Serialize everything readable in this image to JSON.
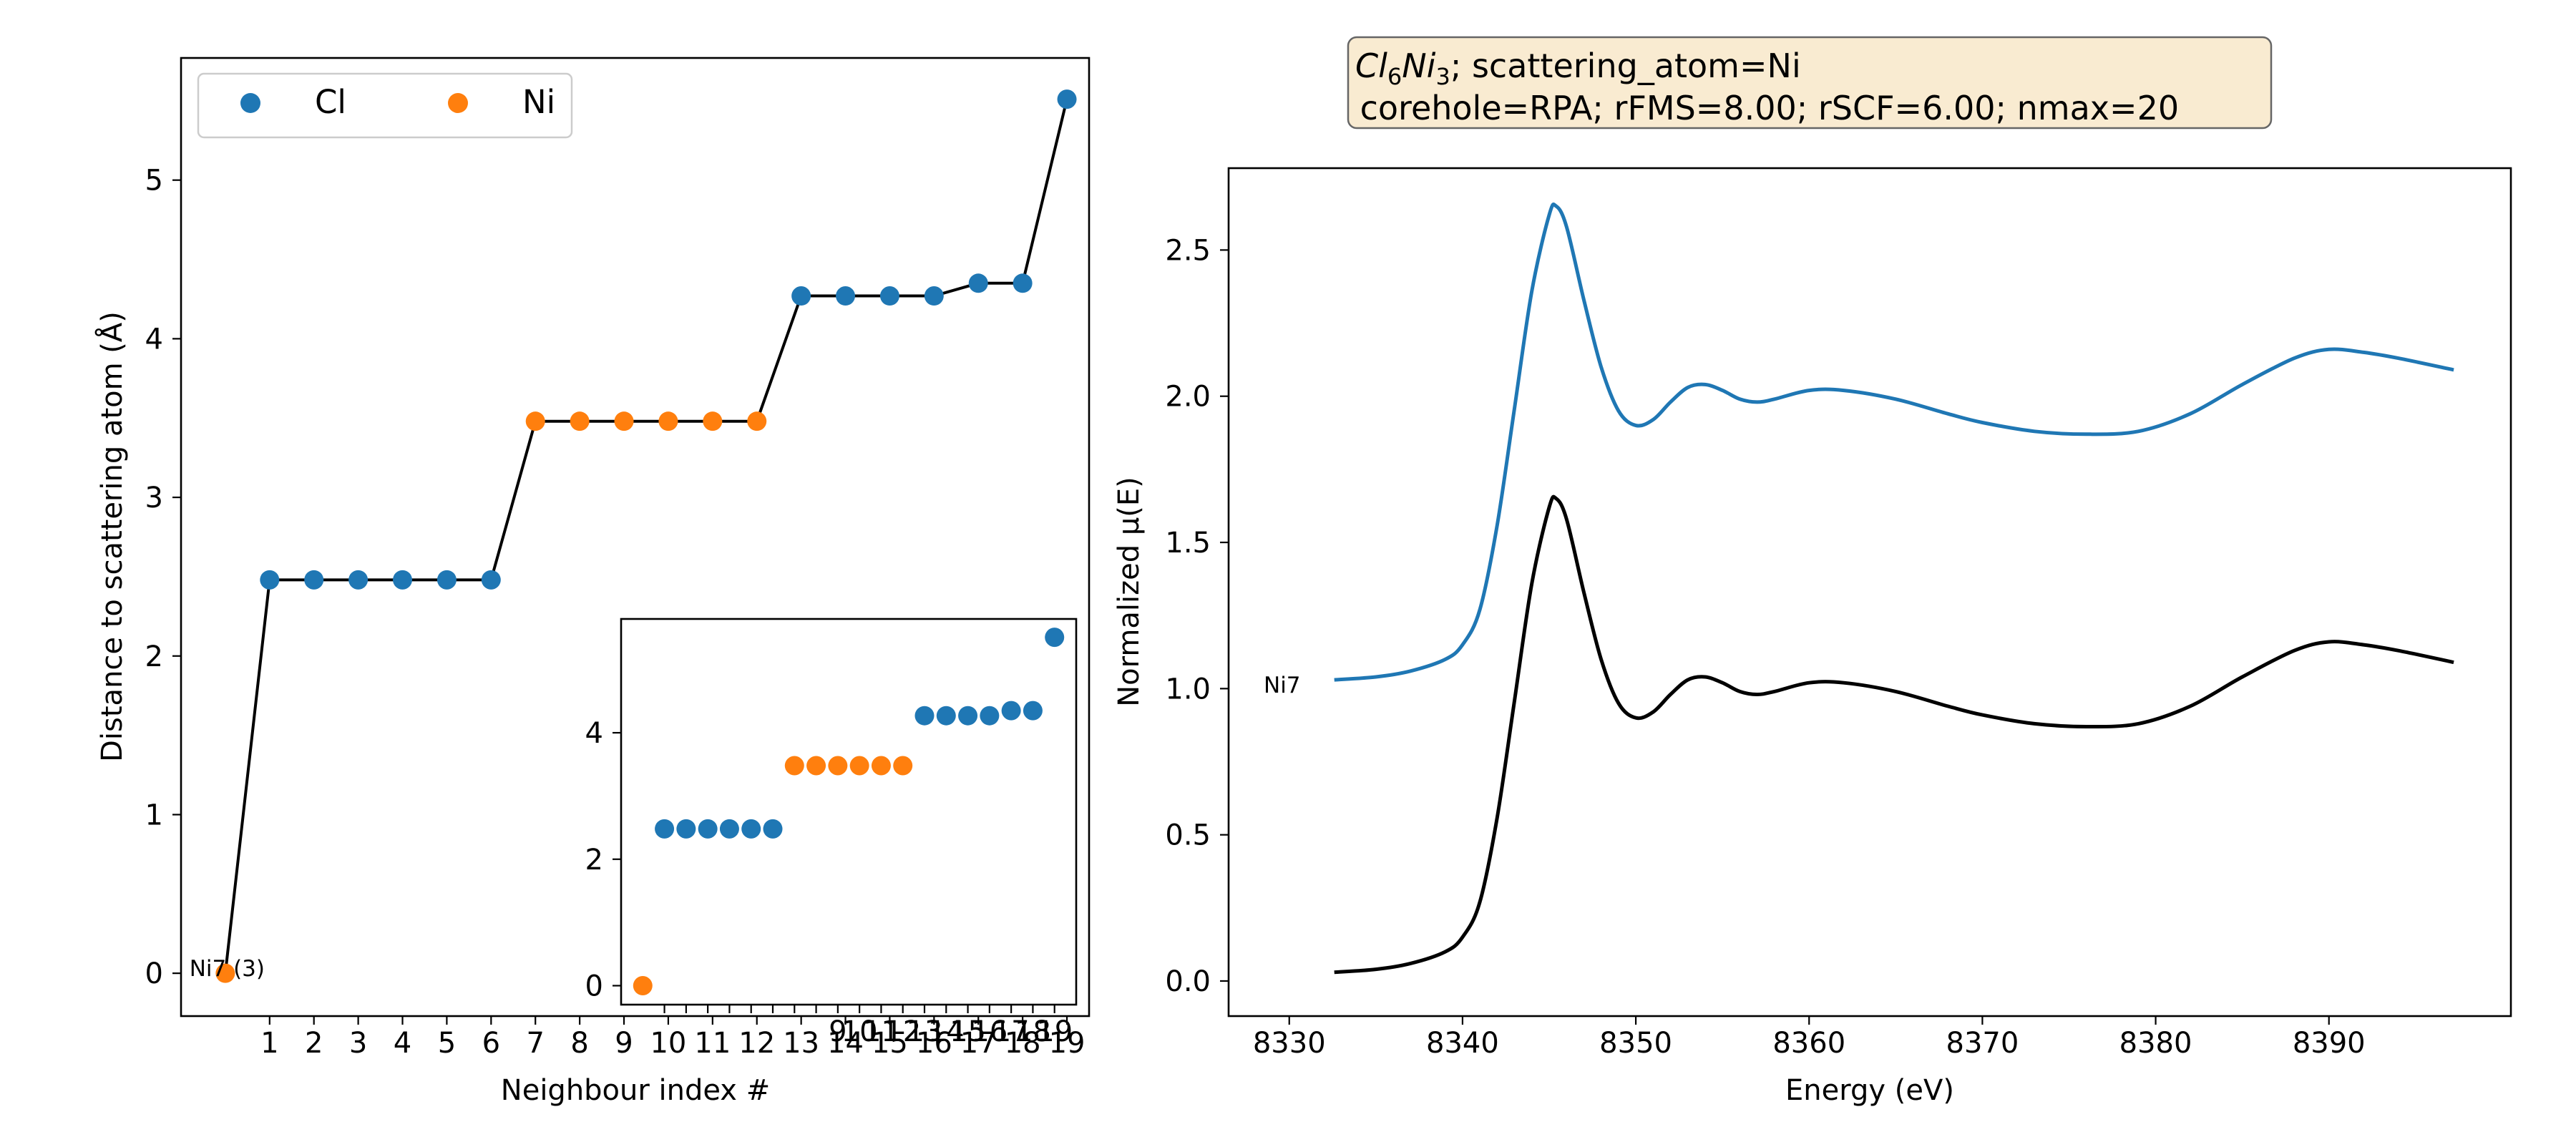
{
  "colors": {
    "cl": "#1f77b4",
    "ni": "#ff7f0e",
    "line": "#000000",
    "spectrum_top": "#1f77b4",
    "spectrum_bottom": "#000000",
    "title_box_fill": "#f5deb3"
  },
  "chart_data": [
    {
      "type": "scatter",
      "xlabel": "Neighbour index #",
      "ylabel": "Distance to scattering atom (Å)",
      "xlim": [
        -1,
        19.5
      ],
      "ylim": [
        -0.27,
        5.77
      ],
      "xticks": [
        1,
        2,
        3,
        4,
        5,
        6,
        7,
        8,
        9,
        10,
        11,
        12,
        13,
        14,
        15,
        16,
        17,
        18,
        19
      ],
      "yticks": [
        0,
        1,
        2,
        3,
        4,
        5
      ],
      "legend": {
        "placement": "top-left",
        "entries": [
          "Cl",
          "Ni"
        ]
      },
      "annotation": "Ni7 (3)",
      "connecting_line": true,
      "points": [
        {
          "x": 0,
          "y": 0.0,
          "el": "Ni"
        },
        {
          "x": 1,
          "y": 2.48,
          "el": "Cl"
        },
        {
          "x": 2,
          "y": 2.48,
          "el": "Cl"
        },
        {
          "x": 3,
          "y": 2.48,
          "el": "Cl"
        },
        {
          "x": 4,
          "y": 2.48,
          "el": "Cl"
        },
        {
          "x": 5,
          "y": 2.48,
          "el": "Cl"
        },
        {
          "x": 6,
          "y": 2.48,
          "el": "Cl"
        },
        {
          "x": 7,
          "y": 3.48,
          "el": "Ni"
        },
        {
          "x": 8,
          "y": 3.48,
          "el": "Ni"
        },
        {
          "x": 9,
          "y": 3.48,
          "el": "Ni"
        },
        {
          "x": 10,
          "y": 3.48,
          "el": "Ni"
        },
        {
          "x": 11,
          "y": 3.48,
          "el": "Ni"
        },
        {
          "x": 12,
          "y": 3.48,
          "el": "Ni"
        },
        {
          "x": 13,
          "y": 4.27,
          "el": "Cl"
        },
        {
          "x": 14,
          "y": 4.27,
          "el": "Cl"
        },
        {
          "x": 15,
          "y": 4.27,
          "el": "Cl"
        },
        {
          "x": 16,
          "y": 4.27,
          "el": "Cl"
        },
        {
          "x": 17,
          "y": 4.35,
          "el": "Cl"
        },
        {
          "x": 18,
          "y": 4.35,
          "el": "Cl"
        },
        {
          "x": 19,
          "y": 5.51,
          "el": "Cl"
        }
      ]
    },
    {
      "type": "scatter",
      "role": "inset",
      "xlim": [
        -1,
        20
      ],
      "ylim": [
        -0.3,
        5.8
      ],
      "xticks": [
        1,
        2,
        3,
        4,
        5,
        6,
        7,
        8,
        9,
        10,
        11,
        12,
        13,
        14,
        15,
        16,
        17,
        18,
        19
      ],
      "yticks": [
        0,
        2,
        4
      ],
      "points_ref": "same as main panel"
    },
    {
      "type": "line",
      "title_line1_formula": [
        "Cl",
        "6",
        "Ni",
        "3"
      ],
      "title_line1_rest": "; scattering_atom=Ni",
      "title_line2": " corehole=RPA; rFMS=8.00; rSCF=6.00; nmax=20",
      "xlabel": "Energy (eV)",
      "ylabel": "Normalized μ(E)",
      "xlim": [
        8326.5,
        8400.5
      ],
      "ylim": [
        -0.12,
        2.78
      ],
      "xticks": [
        8330,
        8340,
        8350,
        8360,
        8370,
        8380,
        8390
      ],
      "yticks": [
        0.0,
        0.5,
        1.0,
        1.5,
        2.0,
        2.5
      ],
      "ytick_labels": [
        "0.0",
        "0.5",
        "1.0",
        "1.5",
        "2.0",
        "2.5"
      ],
      "annotation": "Ni7",
      "series": [
        {
          "offset": 1.0,
          "x": [
            8332.6,
            8335,
            8337,
            8339,
            8340,
            8341,
            8342,
            8343,
            8344,
            8345,
            8345.4,
            8346,
            8347,
            8348,
            8349,
            8350,
            8351,
            8352,
            8353,
            8354,
            8355,
            8356,
            8357,
            8358,
            8360,
            8362,
            8365,
            8368,
            8370,
            8373,
            8376,
            8379,
            8382,
            8385,
            8388,
            8390,
            8392,
            8394,
            8397.2
          ],
          "y": [
            1.03,
            1.04,
            1.06,
            1.1,
            1.15,
            1.27,
            1.56,
            1.96,
            2.36,
            2.62,
            2.65,
            2.58,
            2.33,
            2.1,
            1.95,
            1.9,
            1.92,
            1.98,
            2.03,
            2.04,
            2.02,
            1.99,
            1.98,
            1.99,
            2.02,
            2.02,
            1.99,
            1.94,
            1.91,
            1.88,
            1.87,
            1.88,
            1.94,
            2.04,
            2.13,
            2.16,
            2.15,
            2.13,
            2.09
          ]
        },
        {
          "offset": 0.0,
          "x": [
            8332.6,
            8335,
            8337,
            8339,
            8340,
            8341,
            8342,
            8343,
            8344,
            8345,
            8345.4,
            8346,
            8347,
            8348,
            8349,
            8350,
            8351,
            8352,
            8353,
            8354,
            8355,
            8356,
            8357,
            8358,
            8360,
            8362,
            8365,
            8368,
            8370,
            8373,
            8376,
            8379,
            8382,
            8385,
            8388,
            8390,
            8392,
            8394,
            8397.2
          ],
          "y": [
            0.03,
            0.04,
            0.06,
            0.1,
            0.15,
            0.27,
            0.56,
            0.96,
            1.36,
            1.62,
            1.65,
            1.58,
            1.33,
            1.1,
            0.95,
            0.9,
            0.92,
            0.98,
            1.03,
            1.04,
            1.02,
            0.99,
            0.98,
            0.99,
            1.02,
            1.02,
            0.99,
            0.94,
            0.91,
            0.88,
            0.87,
            0.88,
            0.94,
            1.04,
            1.13,
            1.16,
            1.15,
            1.13,
            1.09
          ]
        }
      ]
    }
  ]
}
